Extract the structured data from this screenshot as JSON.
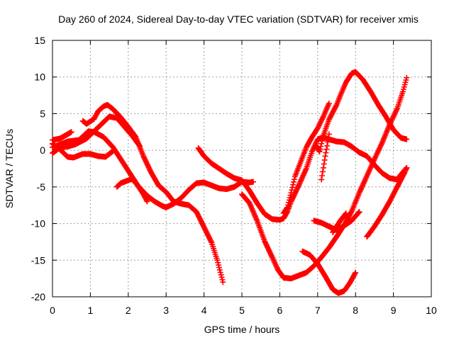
{
  "chart_data": {
    "type": "scatter",
    "title": "Day 260 of 2024, Sidereal Day-to-day VTEC variation (SDTVAR) for receiver xmis",
    "xlabel": "GPS time / hours",
    "ylabel": "SDTVAR / TECUs",
    "xlim": [
      0,
      10
    ],
    "ylim": [
      -20,
      15
    ],
    "xticks": [
      0,
      1,
      2,
      3,
      4,
      5,
      6,
      7,
      8,
      9,
      10
    ],
    "yticks": [
      -20,
      -15,
      -10,
      -5,
      0,
      5,
      10,
      15
    ],
    "grid": true,
    "legend": "none",
    "marker": "+",
    "color": "#ff0000",
    "series": [
      {
        "points": [
          [
            0.0,
            1.4
          ],
          [
            0.2,
            1.6
          ],
          [
            0.4,
            2.2
          ],
          [
            0.5,
            2.5
          ]
        ]
      },
      {
        "points": [
          [
            0.0,
            0.4
          ],
          [
            0.2,
            0.8
          ],
          [
            0.4,
            1.2
          ],
          [
            0.7,
            1.4
          ],
          [
            0.95,
            2.6
          ],
          [
            1.1,
            2.5
          ],
          [
            1.35,
            1.8
          ],
          [
            1.6,
            0.4
          ],
          [
            1.8,
            -1.2
          ],
          [
            2.0,
            -2.8
          ],
          [
            2.2,
            -4.4
          ],
          [
            2.4,
            -6.0
          ],
          [
            2.5,
            -7.0
          ]
        ]
      },
      {
        "points": [
          [
            0.0,
            -0.4
          ],
          [
            0.2,
            0.4
          ],
          [
            0.4,
            0.5
          ],
          [
            0.6,
            0.8
          ],
          [
            0.9,
            1.6
          ],
          [
            1.1,
            2.6
          ],
          [
            1.3,
            3.6
          ],
          [
            1.5,
            4.6
          ],
          [
            1.7,
            4.4
          ],
          [
            1.9,
            3.2
          ],
          [
            2.1,
            2.0
          ],
          [
            2.3,
            0.6
          ]
        ]
      },
      {
        "points": [
          [
            0.0,
            0.9
          ],
          [
            0.2,
            0.1
          ],
          [
            0.4,
            -0.9
          ],
          [
            0.55,
            -1.0
          ],
          [
            0.8,
            -0.5
          ],
          [
            1.0,
            -0.5
          ],
          [
            1.2,
            -0.8
          ],
          [
            1.4,
            -0.9
          ],
          [
            1.6,
            -0.1
          ]
        ]
      },
      {
        "points": [
          [
            0.8,
            4.0
          ],
          [
            0.9,
            3.6
          ],
          [
            1.1,
            4.3
          ],
          [
            1.2,
            5.3
          ],
          [
            1.35,
            6.0
          ],
          [
            1.45,
            6.2
          ],
          [
            1.6,
            5.6
          ],
          [
            1.8,
            4.5
          ],
          [
            2.0,
            3.2
          ],
          [
            2.2,
            1.8
          ],
          [
            2.4,
            -0.8
          ],
          [
            2.6,
            -3.0
          ],
          [
            2.8,
            -4.8
          ],
          [
            3.0,
            -5.7
          ],
          [
            3.2,
            -7.0
          ],
          [
            3.4,
            -7.3
          ],
          [
            3.6,
            -7.5
          ],
          [
            3.8,
            -8.4
          ],
          [
            4.0,
            -10.5
          ],
          [
            4.2,
            -12.6
          ],
          [
            4.35,
            -15.0
          ],
          [
            4.5,
            -18.0
          ]
        ]
      },
      {
        "points": [
          [
            1.7,
            -5.0
          ],
          [
            1.8,
            -4.5
          ],
          [
            2.0,
            -4.1
          ],
          [
            2.1,
            -3.9
          ],
          [
            2.15,
            -4.2
          ],
          [
            2.3,
            -5.1
          ],
          [
            2.5,
            -6.2
          ],
          [
            2.7,
            -7.0
          ],
          [
            2.9,
            -7.6
          ],
          [
            3.0,
            -7.8
          ],
          [
            3.2,
            -7.3
          ],
          [
            3.4,
            -6.5
          ],
          [
            3.6,
            -5.4
          ],
          [
            3.8,
            -4.5
          ],
          [
            4.0,
            -4.4
          ],
          [
            4.2,
            -4.8
          ],
          [
            4.4,
            -5.2
          ],
          [
            4.6,
            -5.3
          ],
          [
            4.8,
            -5.0
          ],
          [
            5.0,
            -4.3
          ],
          [
            5.2,
            -4.4
          ],
          [
            5.3,
            -4.3
          ]
        ]
      },
      {
        "points": [
          [
            3.85,
            0.3
          ],
          [
            4.0,
            -0.8
          ],
          [
            4.2,
            -1.8
          ],
          [
            4.4,
            -2.5
          ],
          [
            4.6,
            -3.2
          ],
          [
            4.8,
            -3.8
          ],
          [
            5.0,
            -4.1
          ],
          [
            5.2,
            -5.5
          ],
          [
            5.4,
            -7.2
          ],
          [
            5.6,
            -8.7
          ],
          [
            5.8,
            -9.4
          ],
          [
            6.0,
            -9.5
          ],
          [
            6.1,
            -9.3
          ],
          [
            6.2,
            -8.4
          ],
          [
            6.3,
            -7.0
          ],
          [
            6.5,
            -4.8
          ],
          [
            6.7,
            -2.5
          ],
          [
            6.85,
            -0.2
          ],
          [
            7.0,
            1.5
          ],
          [
            7.15,
            1.8
          ],
          [
            7.3,
            1.5
          ],
          [
            7.5,
            1.2
          ],
          [
            7.7,
            1.1
          ],
          [
            7.9,
            0.5
          ],
          [
            8.1,
            -0.3
          ],
          [
            8.3,
            -0.8
          ],
          [
            8.5,
            -2.0
          ],
          [
            8.7,
            -3.1
          ],
          [
            8.9,
            -3.8
          ],
          [
            9.1,
            -4.0
          ],
          [
            9.2,
            -3.3
          ],
          [
            9.35,
            -2.4
          ]
        ]
      },
      {
        "points": [
          [
            5.0,
            -6.0
          ],
          [
            5.2,
            -7.2
          ],
          [
            5.4,
            -9.6
          ],
          [
            5.6,
            -12.4
          ],
          [
            5.8,
            -14.6
          ],
          [
            5.95,
            -16.3
          ],
          [
            6.1,
            -17.4
          ],
          [
            6.3,
            -17.5
          ],
          [
            6.5,
            -17.1
          ],
          [
            6.7,
            -16.7
          ],
          [
            6.9,
            -15.8
          ],
          [
            7.1,
            -14.6
          ],
          [
            7.3,
            -13.3
          ],
          [
            7.5,
            -11.8
          ],
          [
            7.7,
            -10.2
          ],
          [
            7.9,
            -8.3
          ],
          [
            8.1,
            -5.8
          ],
          [
            8.3,
            -3.5
          ],
          [
            8.5,
            -1.2
          ],
          [
            8.7,
            1.0
          ],
          [
            8.9,
            3.5
          ],
          [
            9.1,
            5.7
          ],
          [
            9.25,
            8.0
          ],
          [
            9.35,
            9.9
          ]
        ]
      },
      {
        "points": [
          [
            6.1,
            -8.6
          ],
          [
            6.2,
            -7.8
          ],
          [
            6.3,
            -5.8
          ],
          [
            6.4,
            -3.6
          ],
          [
            6.55,
            -1.6
          ],
          [
            6.7,
            0.4
          ],
          [
            6.85,
            1.8
          ],
          [
            7.0,
            3.0
          ],
          [
            7.15,
            4.6
          ],
          [
            7.3,
            6.4
          ]
        ]
      },
      {
        "points": [
          [
            6.6,
            -13.8
          ],
          [
            6.8,
            -14.3
          ],
          [
            7.0,
            -15.5
          ],
          [
            7.2,
            -17.2
          ],
          [
            7.4,
            -19.0
          ],
          [
            7.55,
            -19.5
          ],
          [
            7.7,
            -19.2
          ],
          [
            7.85,
            -18.1
          ],
          [
            8.0,
            -16.7
          ]
        ]
      },
      {
        "points": [
          [
            6.95,
            0.7
          ],
          [
            7.05,
            -0.2
          ],
          [
            7.15,
            2.0
          ],
          [
            7.3,
            4.2
          ],
          [
            7.4,
            5.2
          ],
          [
            7.5,
            6.2
          ],
          [
            7.6,
            7.5
          ],
          [
            7.75,
            9.3
          ],
          [
            7.9,
            10.5
          ],
          [
            8.0,
            10.7
          ],
          [
            8.2,
            9.6
          ],
          [
            8.4,
            8.0
          ],
          [
            8.6,
            6.2
          ],
          [
            8.8,
            4.6
          ],
          [
            9.0,
            2.8
          ],
          [
            9.2,
            1.7
          ],
          [
            9.35,
            1.5
          ]
        ]
      },
      {
        "points": [
          [
            7.1,
            -4.0
          ],
          [
            7.15,
            -2.4
          ],
          [
            7.2,
            -0.8
          ],
          [
            7.25,
            0.6
          ],
          [
            7.3,
            2.2
          ]
        ]
      },
      {
        "points": [
          [
            6.9,
            -9.6
          ],
          [
            7.1,
            -9.9
          ],
          [
            7.3,
            -10.4
          ],
          [
            7.5,
            -10.9
          ],
          [
            7.7,
            -10.3
          ],
          [
            7.9,
            -9.6
          ],
          [
            8.1,
            -8.4
          ]
        ]
      },
      {
        "points": [
          [
            7.4,
            -11.2
          ],
          [
            7.6,
            -9.6
          ],
          [
            7.75,
            -8.6
          ]
        ]
      },
      {
        "points": [
          [
            8.3,
            -11.8
          ],
          [
            8.5,
            -10.4
          ],
          [
            8.7,
            -8.8
          ],
          [
            8.9,
            -7.0
          ],
          [
            9.1,
            -5.0
          ],
          [
            9.3,
            -3.0
          ],
          [
            9.35,
            -2.4
          ]
        ]
      }
    ]
  }
}
